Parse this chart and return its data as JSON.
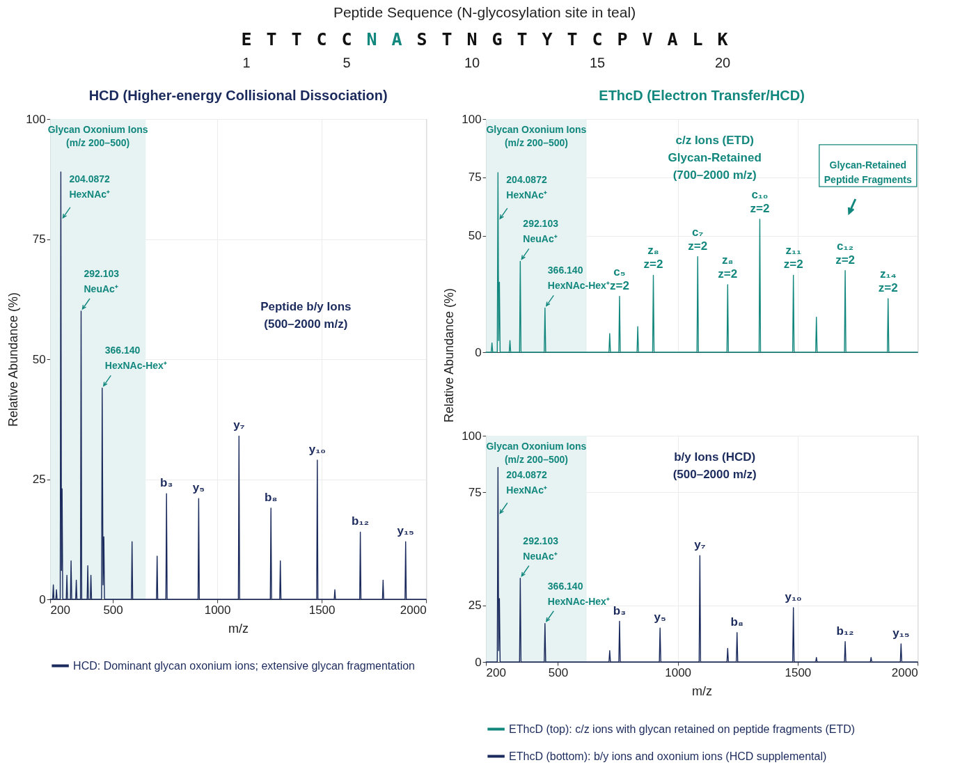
{
  "chart_data": [
    {
      "type": "other",
      "title": "Peptide Sequence (N-glycosylation site in teal)",
      "categories": [
        "E",
        "T",
        "T",
        "C",
        "C",
        "N",
        "A",
        "S",
        "T",
        "N",
        "G",
        "T",
        "Y",
        "T",
        "C",
        "P",
        "V",
        "A",
        "L",
        "K"
      ],
      "colors": [
        "#111111",
        "#111111",
        "#111111",
        "#111111",
        "#111111",
        "#12877d",
        "#12877d",
        "#111111",
        "#111111",
        "#111111",
        "#111111",
        "#111111",
        "#111111",
        "#111111",
        "#111111",
        "#111111",
        "#111111",
        "#111111",
        "#111111",
        "#111111"
      ],
      "annotations": [
        "1",
        "5",
        "10",
        "15",
        "20"
      ]
    },
    {
      "type": "line",
      "title": "HCD (Higher-energy Collisional Dissociation)",
      "xlabel": "m/z",
      "ylabel": "Relative Abundance (%)",
      "xlim": [
        200,
        2000
      ],
      "xticks": [
        200,
        500,
        1000,
        1500,
        2000
      ],
      "ylim": [
        0,
        100
      ],
      "yticks": [
        0,
        25,
        50,
        75,
        100
      ],
      "grid": true,
      "legend": "bottom",
      "bands": [
        {
          "axis": "x",
          "from": 200,
          "to": 657,
          "label": "Glycan Oxonium Ions\n(m/z 200–500)",
          "color": "#e6f3f2"
        }
      ],
      "series": [
        {
          "name": "HCD: Dominant glycan oxonium ions; extensive glycan fragmentation",
          "color": "#1b2a5c",
          "x": [
            200,
            212,
            215,
            218,
            227,
            230,
            233,
            248,
            251,
            254,
            257,
            260,
            277,
            280,
            283,
            297,
            300,
            303,
            322,
            325,
            328,
            345,
            348,
            351,
            377,
            380,
            383,
            392,
            395,
            398,
            446,
            449,
            453,
            457,
            460,
            589,
            592,
            595,
            709,
            712,
            715,
            754,
            757,
            760,
            908,
            911,
            914,
            1101,
            1104,
            1107,
            1254,
            1257,
            1260,
            1299,
            1302,
            1305,
            1476,
            1479,
            1482,
            1560,
            1563,
            1566,
            1682,
            1685,
            1688,
            1791,
            1794,
            1797,
            1899,
            1902,
            1905,
            2000
          ],
          "values": [
            0,
            0,
            3,
            0,
            0,
            2,
            0,
            0,
            89,
            6,
            23,
            0,
            0,
            5,
            0,
            0,
            8,
            0,
            0,
            4,
            0,
            0,
            60,
            0,
            0,
            7,
            0,
            0,
            5,
            0,
            0,
            44,
            3,
            13,
            0,
            0,
            12,
            0,
            0,
            9,
            0,
            0,
            22,
            0,
            0,
            21,
            0,
            0,
            34,
            0,
            0,
            19,
            0,
            0,
            8,
            0,
            0,
            29,
            0,
            0,
            2,
            0,
            0,
            14,
            0,
            0,
            4,
            0,
            0,
            12,
            0,
            0
          ]
        }
      ],
      "annotations": [
        {
          "text": "204.0872\nHexNAc⁺",
          "x": 251,
          "y": 89
        },
        {
          "text": "292.103\nNeuAc⁺",
          "x": 348,
          "y": 60
        },
        {
          "text": "366.140\nHexNAc-Hex⁺",
          "x": 449,
          "y": 44
        },
        {
          "text": "b₃",
          "x": 757,
          "y": 22
        },
        {
          "text": "y₅",
          "x": 911,
          "y": 21
        },
        {
          "text": "y₇",
          "x": 1104,
          "y": 34
        },
        {
          "text": "b₈",
          "x": 1257,
          "y": 19
        },
        {
          "text": "y₁₀",
          "x": 1479,
          "y": 29
        },
        {
          "text": "b₁₂",
          "x": 1685,
          "y": 14
        },
        {
          "text": "y₁₅",
          "x": 1902,
          "y": 12
        },
        "Peptide b/y Ions\n(500–2000 m/z)"
      ]
    },
    {
      "type": "line",
      "title": "EThcD (Electron Transfer/HCD)",
      "ylabel": "Relative Abundance (%)",
      "xlim": [
        200,
        2000
      ],
      "xticks": [
        200,
        500,
        1000,
        1500,
        2000
      ],
      "ylim": [
        0,
        100
      ],
      "yticks": [
        0,
        50,
        75,
        100
      ],
      "grid": true,
      "legend": "bottom",
      "tick_labels": "y",
      "bands": [
        {
          "axis": "x",
          "from": 200,
          "to": 620,
          "label": "Glycan Oxonium Ions\n(m/z 200–500)",
          "color": "#e6f3f2"
        }
      ],
      "series": [
        {
          "name": "EThcD (top): c/z ions with glycan retained on peptide fragments (ETD)",
          "color": "#12877d",
          "x": [
            200,
            222,
            225,
            228,
            247,
            250,
            253,
            256,
            259,
            297,
            300,
            303,
            340,
            343,
            346,
            443,
            446,
            449,
            713,
            716,
            719,
            754,
            757,
            760,
            830,
            833,
            836,
            895,
            898,
            901,
            1080,
            1083,
            1086,
            1205,
            1208,
            1211,
            1339,
            1342,
            1345,
            1479,
            1482,
            1485,
            1575,
            1578,
            1581,
            1695,
            1698,
            1701,
            1874,
            1877,
            1880,
            2000
          ],
          "values": [
            0,
            0,
            4,
            0,
            0,
            77,
            5,
            30,
            0,
            0,
            5,
            0,
            0,
            39,
            0,
            0,
            19,
            0,
            0,
            8,
            0,
            0,
            24,
            0,
            0,
            11,
            0,
            0,
            33,
            0,
            0,
            41,
            0,
            0,
            29,
            0,
            0,
            57,
            0,
            0,
            33,
            0,
            0,
            15,
            0,
            0,
            35,
            0,
            0,
            23,
            0,
            0
          ]
        }
      ],
      "annotations": [
        {
          "text": "204.0872\nHexNAc⁺",
          "x": 250,
          "y": 77
        },
        {
          "text": "292.103\nNeuAc⁺",
          "x": 343,
          "y": 39
        },
        {
          "text": "366.140\nHexNAc-Hex⁺",
          "x": 446,
          "y": 19
        },
        {
          "text": "c₅\nz=2",
          "x": 757,
          "y": 24
        },
        {
          "text": "z₈\nz=2",
          "x": 898,
          "y": 33
        },
        {
          "text": "c₇\nz=2",
          "x": 1083,
          "y": 41
        },
        {
          "text": "z₈\nz=2",
          "x": 1208,
          "y": 29
        },
        {
          "text": "c₁₀\nz=2",
          "x": 1342,
          "y": 57
        },
        {
          "text": "z₁₁\nz=2",
          "x": 1482,
          "y": 33
        },
        {
          "text": "c₁₂\nz=2",
          "x": 1698,
          "y": 35
        },
        {
          "text": "z₁₄\nz=2",
          "x": 1877,
          "y": 23
        },
        "c/z Ions (ETD)\nGlycan-Retained\n(700–2000 m/z)",
        "Glycan-Retained\nPeptide Fragments"
      ]
    },
    {
      "type": "line",
      "xlabel": "m/z",
      "xlim": [
        200,
        2000
      ],
      "xticks": [
        200,
        500,
        1000,
        1500,
        2000
      ],
      "ylim": [
        0,
        100
      ],
      "yticks": [
        0,
        25,
        75,
        100
      ],
      "grid": true,
      "legend": "bottom",
      "bands": [
        {
          "axis": "x",
          "from": 200,
          "to": 620,
          "label": "Glycan Oxonium Ions\n(m/z 200–500)",
          "color": "#e6f3f2"
        }
      ],
      "series": [
        {
          "name": "EThcD (bottom): b/y ions and oxonium ions (HCD supplemental)",
          "color": "#1b2a5c",
          "x": [
            200,
            247,
            250,
            253,
            256,
            259,
            340,
            343,
            346,
            443,
            446,
            449,
            713,
            716,
            719,
            754,
            757,
            760,
            923,
            926,
            929,
            1089,
            1092,
            1095,
            1205,
            1208,
            1211,
            1244,
            1247,
            1250,
            1479,
            1482,
            1485,
            1575,
            1578,
            1581,
            1695,
            1698,
            1701,
            1803,
            1806,
            1809,
            1928,
            1931,
            1934,
            2000
          ],
          "values": [
            0,
            0,
            86,
            5,
            28,
            0,
            0,
            37,
            0,
            0,
            17,
            0,
            0,
            5,
            0,
            0,
            18,
            0,
            0,
            15,
            0,
            0,
            47,
            0,
            0,
            6,
            0,
            0,
            13,
            0,
            0,
            24,
            0,
            0,
            2,
            0,
            0,
            9,
            0,
            0,
            2,
            0,
            0,
            8,
            0,
            0
          ]
        }
      ],
      "annotations": [
        {
          "text": "204.0872\nHexNAc⁺",
          "x": 250,
          "y": 86
        },
        {
          "text": "292.103\nNeuAc⁺",
          "x": 343,
          "y": 37
        },
        {
          "text": "366.140\nHexNAc-Hex⁺",
          "x": 446,
          "y": 17
        },
        {
          "text": "b₃",
          "x": 757,
          "y": 18
        },
        {
          "text": "y₅",
          "x": 926,
          "y": 15
        },
        {
          "text": "y₇",
          "x": 1092,
          "y": 47
        },
        {
          "text": "b₈",
          "x": 1247,
          "y": 13
        },
        {
          "text": "y₁₀",
          "x": 1482,
          "y": 24
        },
        {
          "text": "b₁₂",
          "x": 1698,
          "y": 9
        },
        {
          "text": "y₁₅",
          "x": 1931,
          "y": 8
        },
        "b/y Ions (HCD)\n(500–2000 m/z)"
      ]
    }
  ]
}
